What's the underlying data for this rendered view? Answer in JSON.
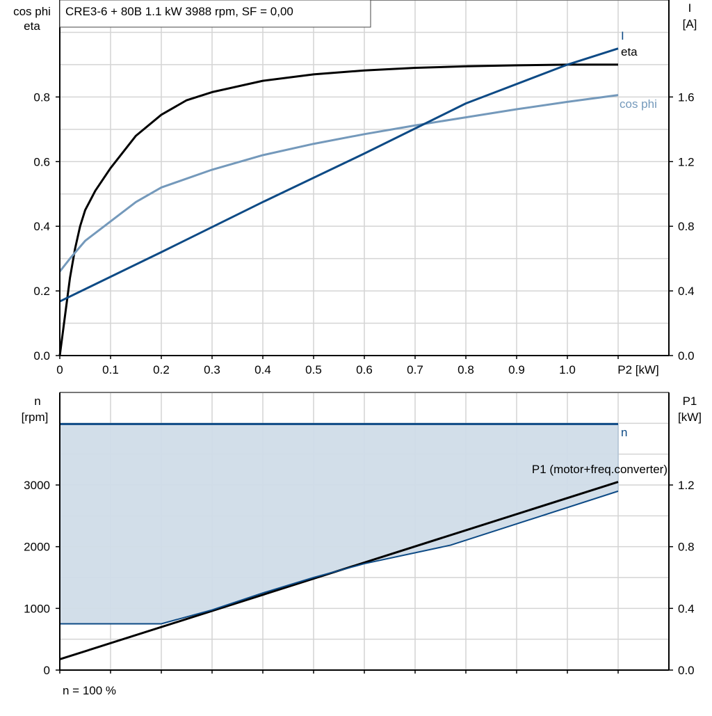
{
  "chart_data": [
    {
      "type": "line",
      "title": "CRE3-6 + 80B   1.1 kW   3988 rpm, SF = 0,00",
      "xlabel": "P2 [kW]",
      "ylabel_left": [
        "cos phi",
        "eta"
      ],
      "ylabel_right": [
        "I",
        "[A]"
      ],
      "xlim": [
        0,
        1.1
      ],
      "ylim_left": [
        0,
        1.1
      ],
      "ylim_right": [
        0,
        2.2
      ],
      "x_ticks": [
        "0",
        "0.1",
        "0.2",
        "0.3",
        "0.4",
        "0.5",
        "0.6",
        "0.7",
        "0.8",
        "0.9",
        "1.0"
      ],
      "y_ticks_left": [
        "0.0",
        "0.2",
        "0.4",
        "0.6",
        "0.8"
      ],
      "y_ticks_right": [
        "0.0",
        "0.4",
        "0.8",
        "1.2",
        "1.6"
      ],
      "grid": true,
      "series": [
        {
          "name": "eta",
          "axis": "left",
          "color": "#000000",
          "points": [
            [
              0,
              0
            ],
            [
              0.01,
              0.12
            ],
            [
              0.02,
              0.24
            ],
            [
              0.03,
              0.33
            ],
            [
              0.04,
              0.4
            ],
            [
              0.05,
              0.45
            ],
            [
              0.07,
              0.51
            ],
            [
              0.1,
              0.58
            ],
            [
              0.15,
              0.68
            ],
            [
              0.2,
              0.745
            ],
            [
              0.25,
              0.79
            ],
            [
              0.3,
              0.815
            ],
            [
              0.4,
              0.85
            ],
            [
              0.5,
              0.87
            ],
            [
              0.6,
              0.882
            ],
            [
              0.7,
              0.89
            ],
            [
              0.8,
              0.895
            ],
            [
              0.9,
              0.898
            ],
            [
              1.0,
              0.9
            ],
            [
              1.1,
              0.9
            ]
          ]
        },
        {
          "name": "cos phi",
          "axis": "left",
          "color": "#7499bb",
          "points": [
            [
              0,
              0.26
            ],
            [
              0.02,
              0.3
            ],
            [
              0.05,
              0.355
            ],
            [
              0.1,
              0.415
            ],
            [
              0.15,
              0.475
            ],
            [
              0.2,
              0.52
            ],
            [
              0.3,
              0.575
            ],
            [
              0.4,
              0.62
            ],
            [
              0.5,
              0.655
            ],
            [
              0.6,
              0.685
            ],
            [
              0.7,
              0.712
            ],
            [
              0.8,
              0.737
            ],
            [
              0.9,
              0.762
            ],
            [
              1.0,
              0.785
            ],
            [
              1.1,
              0.806
            ]
          ]
        },
        {
          "name": "I",
          "axis": "right",
          "color": "#0d4a85",
          "points": [
            [
              0,
              0.335
            ],
            [
              0.2,
              0.64
            ],
            [
              0.4,
              0.95
            ],
            [
              0.6,
              1.25
            ],
            [
              0.8,
              1.56
            ],
            [
              1.0,
              1.8
            ],
            [
              1.1,
              1.9
            ]
          ]
        }
      ]
    },
    {
      "type": "line",
      "ylabel_left": [
        "n",
        "[rpm]"
      ],
      "ylabel_right": [
        "P1",
        "[kW]"
      ],
      "xlim": [
        0,
        1.1
      ],
      "ylim_left": [
        0,
        4500
      ],
      "ylim_right": [
        0,
        1.8
      ],
      "y_ticks_left": [
        "0",
        "1000",
        "2000",
        "3000"
      ],
      "y_ticks_right": [
        "0.0",
        "0.4",
        "0.8",
        "1.2"
      ],
      "grid": true,
      "note": "n = 100 %",
      "series": [
        {
          "name": "n",
          "axis": "left",
          "color": "#0d4a85",
          "points": [
            [
              0,
              3988
            ],
            [
              1.1,
              3988
            ]
          ]
        },
        {
          "name": "P1 (motor+freq.converter)",
          "axis": "right",
          "color": "#000000",
          "points": [
            [
              0,
              0.07
            ],
            [
              1.1,
              1.22
            ]
          ]
        },
        {
          "axis": "right",
          "color": "#0d4a85",
          "points": [
            [
              0,
              0.3
            ],
            [
              0.2,
              0.3
            ],
            [
              0.3,
              0.39
            ],
            [
              0.4,
              0.5
            ],
            [
              0.5,
              0.6
            ],
            [
              0.6,
              0.69
            ],
            [
              0.77,
              0.81
            ],
            [
              1.1,
              1.16
            ]
          ]
        }
      ],
      "fill_color": "#d0dce8"
    }
  ]
}
